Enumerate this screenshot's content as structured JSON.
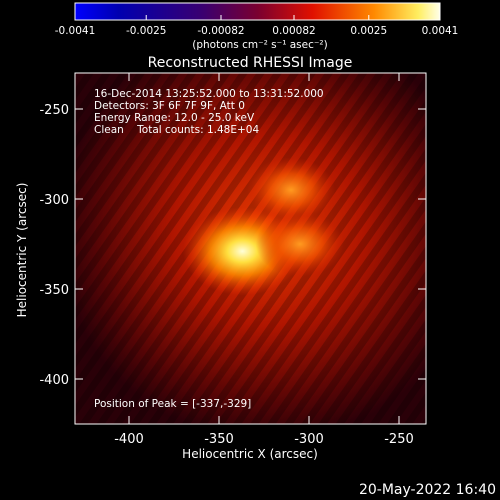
{
  "chart_data": {
    "type": "heatmap",
    "title": "Reconstructed RHESSI Image",
    "xlabel": "Heliocentric X (arcsec)",
    "ylabel": "Heliocentric Y (arcsec)",
    "xlim": [
      -430,
      -235
    ],
    "ylim": [
      -425,
      -230
    ],
    "x_ticks": [
      "-400",
      "-350",
      "-300",
      "-250"
    ],
    "x_tick_values": [
      -400,
      -350,
      -300,
      -250
    ],
    "y_ticks": [
      "-250",
      "-300",
      "-350",
      "-400"
    ],
    "y_tick_values": [
      -250,
      -300,
      -350,
      -400
    ],
    "colorbar": {
      "ticks": [
        "-0.0041",
        "-0.0025",
        "-0.00082",
        "0.00082",
        "0.0025",
        "0.0041"
      ],
      "tick_values": [
        -0.0041,
        -0.0025,
        -0.00082,
        0.00082,
        0.0025,
        0.0041
      ],
      "range": [
        -0.0041,
        0.0041
      ],
      "label": "(photons cm⁻² s⁻¹ asec⁻²)"
    },
    "annotations": {
      "line1": "16-Dec-2014 13:25:52.000 to 13:31:52.000",
      "line2": "Detectors: 3F 6F 7F 9F, Att 0",
      "line3": "Energy Range: 12.0 - 25.0 keV",
      "line4": "Clean    Total counts: 1.48E+04",
      "peak": "Position of Peak = [-337,-329]"
    },
    "sources": [
      {
        "x": -337,
        "y": -329,
        "level": 1.0
      },
      {
        "x": -310,
        "y": -295,
        "level": 0.55
      },
      {
        "x": -305,
        "y": -325,
        "level": 0.55
      }
    ]
  },
  "footer_date": "20-May-2022 16:40"
}
